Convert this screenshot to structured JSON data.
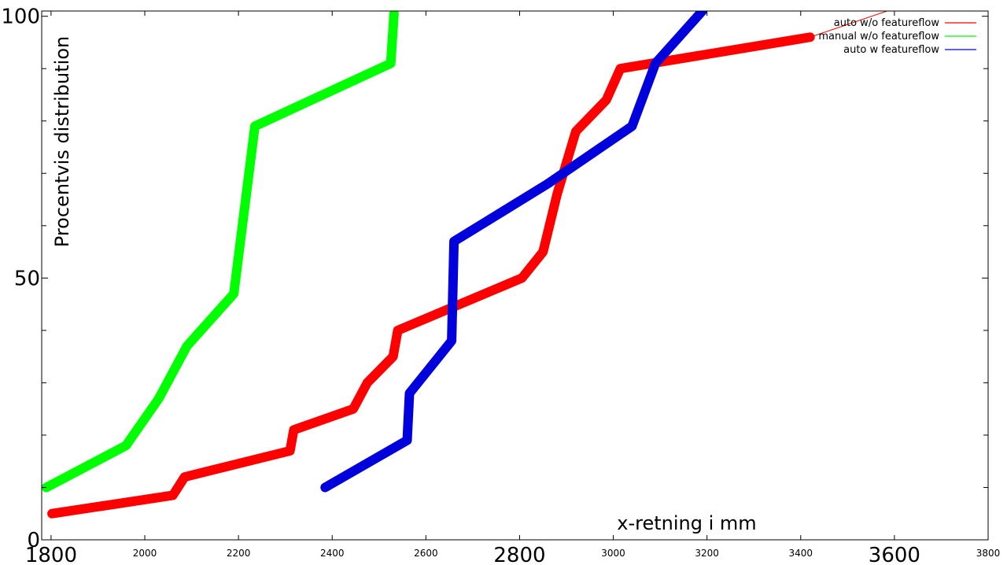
{
  "chart_data": {
    "type": "line",
    "title": "",
    "xlabel": "x-retning i mm",
    "ylabel": "Procentvis distribution",
    "xlim": [
      1780,
      3800
    ],
    "ylim": [
      0,
      101
    ],
    "grid": false,
    "legend_position": "top-right",
    "x_ticks": [
      {
        "value": 1800,
        "label": "1800",
        "size": "large"
      },
      {
        "value": 2000,
        "label": "2000",
        "size": "small"
      },
      {
        "value": 2200,
        "label": "2200",
        "size": "small"
      },
      {
        "value": 2400,
        "label": "2400",
        "size": "small"
      },
      {
        "value": 2600,
        "label": "2600",
        "size": "small"
      },
      {
        "value": 2800,
        "label": "2800",
        "size": "large"
      },
      {
        "value": 3000,
        "label": "3000",
        "size": "small"
      },
      {
        "value": 3200,
        "label": "3200",
        "size": "small"
      },
      {
        "value": 3400,
        "label": "3400",
        "size": "small"
      },
      {
        "value": 3600,
        "label": "3600",
        "size": "large"
      },
      {
        "value": 3800,
        "label": "3800",
        "size": "small"
      }
    ],
    "y_ticks": [
      {
        "value": 0,
        "label": "0"
      },
      {
        "value": 50,
        "label": "50"
      },
      {
        "value": 100,
        "label": "100"
      }
    ],
    "y_minor_ticks": [
      10,
      20,
      30,
      40,
      60,
      70,
      80,
      90
    ],
    "series": [
      {
        "name": "auto w/o featureflow",
        "color": "#ff0000",
        "x": [
          1802,
          2060,
          2085,
          2310,
          2318,
          2445,
          2475,
          2530,
          2540,
          2805,
          2850,
          2880,
          2920,
          2985,
          3015,
          3420
        ],
        "y": [
          5,
          8.5,
          12,
          17,
          21,
          25,
          30,
          35,
          40,
          50,
          55,
          66,
          78,
          84,
          90,
          96
        ]
      },
      {
        "name": "manual w/o featureflow",
        "color": "#00ff00",
        "x": [
          1790,
          1960,
          2030,
          2090,
          2190,
          2235,
          2525,
          2532
        ],
        "y": [
          10,
          18,
          27,
          37,
          47,
          79,
          91,
          100.5
        ]
      },
      {
        "name": "auto w featureflow",
        "color": "#0000dd",
        "x": [
          2385,
          2560,
          2565,
          2655,
          2660,
          2860,
          3040,
          3090,
          3190
        ],
        "y": [
          10,
          19,
          28,
          38,
          57,
          68,
          79,
          91,
          101
        ]
      }
    ],
    "extra_line": {
      "color": "#ff0000",
      "x": [
        3420,
        3650
      ],
      "y": [
        96,
        103
      ]
    }
  }
}
